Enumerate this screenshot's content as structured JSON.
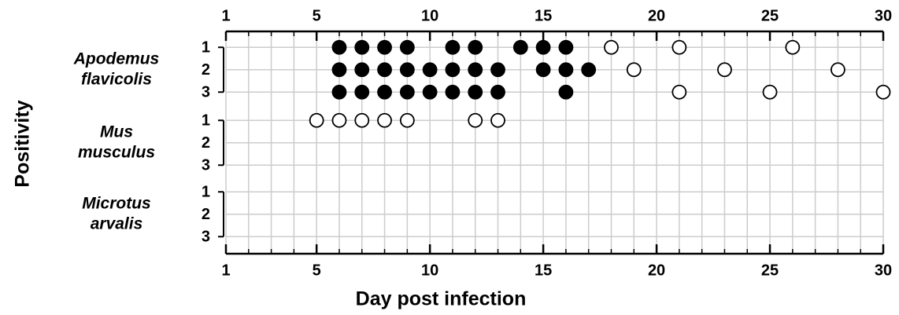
{
  "chart_data": {
    "type": "scatter",
    "x_label": "Day post infection",
    "y_label": "Positivity",
    "xlim": [
      1,
      30
    ],
    "xticks": [
      1,
      5,
      10,
      15,
      20,
      25,
      30
    ],
    "x_minor_ticks": [
      1,
      2,
      3,
      4,
      5,
      6,
      7,
      8,
      9,
      10,
      11,
      12,
      13,
      14,
      15,
      16,
      17,
      18,
      19,
      20,
      21,
      22,
      23,
      24,
      25,
      26,
      27,
      28,
      29,
      30
    ],
    "grid": true,
    "grid_color": "#cccccc",
    "y_inverted": true,
    "panels": [
      {
        "label": [
          "Apodemus",
          "flavicolis"
        ],
        "ylim": [
          0.5,
          3.5
        ],
        "yticks": [
          1,
          2,
          3
        ],
        "series": [
          {
            "filled": true,
            "color": "#000000",
            "x": [
              6,
              7,
              8,
              9,
              11,
              12,
              14,
              15,
              16,
              6,
              7,
              8,
              9,
              10,
              11,
              12,
              13,
              15,
              16,
              17,
              6,
              7,
              8,
              9,
              10,
              11,
              12,
              13,
              16
            ],
            "y": [
              1,
              1,
              1,
              1,
              1,
              1,
              1,
              1,
              1,
              2,
              2,
              2,
              2,
              2,
              2,
              2,
              2,
              2,
              2,
              2,
              3,
              3,
              3,
              3,
              3,
              3,
              3,
              3,
              3
            ]
          },
          {
            "filled": false,
            "color": "#000000",
            "x": [
              18,
              21,
              26,
              19,
              23,
              28,
              21,
              25,
              30
            ],
            "y": [
              1,
              1,
              1,
              2,
              2,
              2,
              3,
              3,
              3
            ]
          }
        ]
      },
      {
        "label": [
          "Mus",
          "musculus"
        ],
        "ylim": [
          0.5,
          3.5
        ],
        "yticks": [
          1,
          2,
          3
        ],
        "series": [
          {
            "filled": false,
            "color": "#000000",
            "x": [
              5,
              6,
              7,
              8,
              9,
              12,
              13
            ],
            "y": [
              1,
              1,
              1,
              1,
              1,
              1,
              1
            ]
          }
        ]
      },
      {
        "label": [
          "Microtus",
          "arvalis"
        ],
        "ylim": [
          0.5,
          3.5
        ],
        "yticks": [
          1,
          2,
          3
        ],
        "series": []
      }
    ]
  }
}
